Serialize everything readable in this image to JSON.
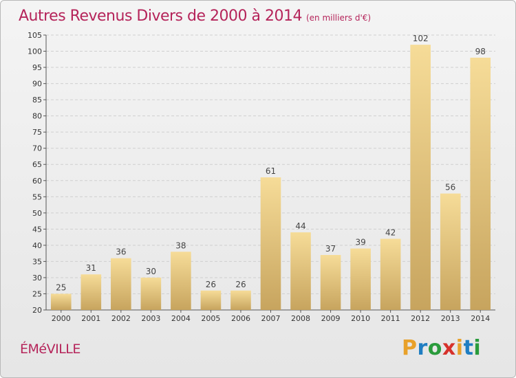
{
  "header": {
    "title": "Autres Revenus Divers de 2000 à 2014",
    "subtitle": "(en milliers d'€)"
  },
  "footer": {
    "commune": "ÉMéVILLE",
    "logo": {
      "letters": [
        "P",
        "r",
        "o",
        "x",
        "i",
        "t",
        "i"
      ],
      "colors": [
        "#e8a12a",
        "#1f7ec2",
        "#2a9b3c",
        "#d6312b",
        "#e8a12a",
        "#1f7ec2",
        "#2a9b3c"
      ]
    }
  },
  "chart_data": {
    "type": "bar",
    "categories": [
      "2000",
      "2001",
      "2002",
      "2003",
      "2004",
      "2005",
      "2006",
      "2007",
      "2008",
      "2009",
      "2010",
      "2011",
      "2012",
      "2013",
      "2014"
    ],
    "values": [
      25,
      31,
      36,
      30,
      38,
      26,
      26,
      61,
      44,
      37,
      39,
      42,
      102,
      56,
      98
    ],
    "title": "Autres Revenus Divers de 2000 à 2014",
    "subtitle": "(en milliers d'€)",
    "xlabel": "",
    "ylabel": "",
    "ylim": [
      20,
      105
    ],
    "yticks": [
      20,
      25,
      30,
      35,
      40,
      45,
      50,
      55,
      60,
      65,
      70,
      75,
      80,
      85,
      90,
      95,
      100,
      105
    ],
    "grid": true,
    "colors": {
      "bar_light": "#f6dc98",
      "bar_dark": "#c7a45e",
      "grid": "#cfcfcf"
    }
  }
}
